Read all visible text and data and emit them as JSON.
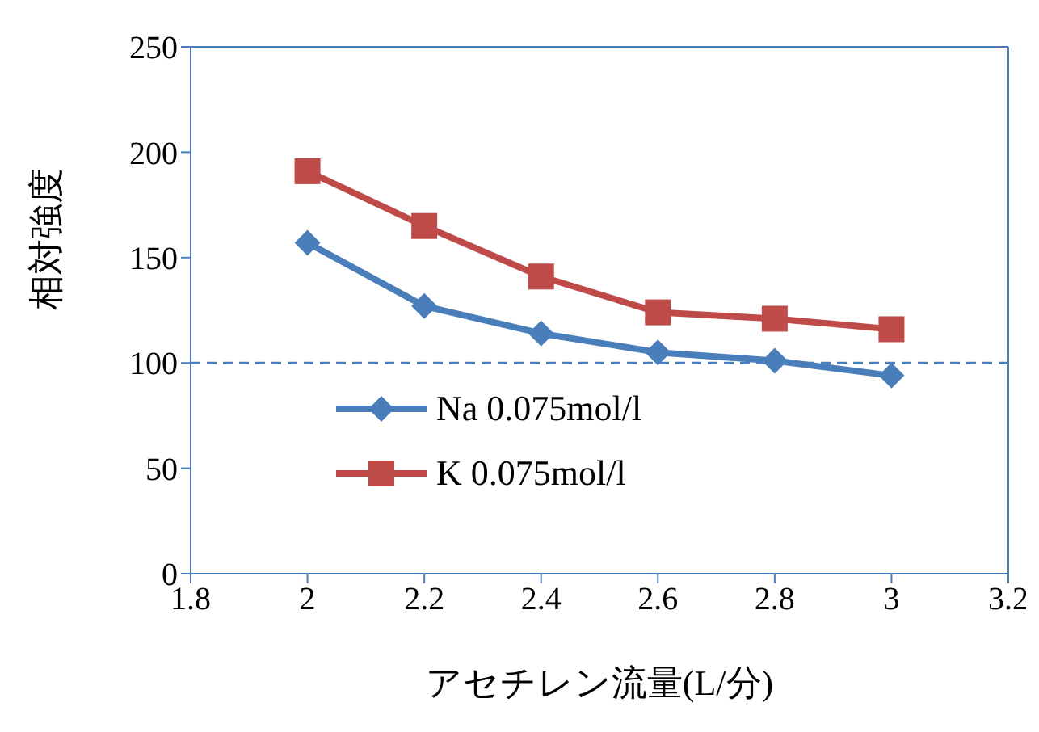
{
  "chart_data": {
    "type": "line",
    "xlabel": "アセチレン流量(L/分)",
    "ylabel": "相対強度",
    "x": [
      2,
      2.2,
      2.4,
      2.6,
      2.8,
      3
    ],
    "series": [
      {
        "name": "Na 0.075mol/l",
        "color": "#4a7ebb",
        "marker": "diamond",
        "values": [
          157,
          127,
          114,
          105,
          101,
          94
        ]
      },
      {
        "name": "K 0.075mol/l",
        "color": "#be4b48",
        "marker": "square",
        "values": [
          191,
          165,
          141,
          124,
          121,
          116
        ]
      }
    ],
    "xlim": [
      1.8,
      3.2
    ],
    "xticks": [
      1.8,
      2,
      2.2,
      2.4,
      2.6,
      2.8,
      3,
      3.2
    ],
    "ylim": [
      0,
      250
    ],
    "yticks": [
      0,
      50,
      100,
      150,
      200,
      250
    ],
    "ref_lines": [
      {
        "axis": "y",
        "value": 100,
        "color": "#4a7ebb",
        "line_style": "dashed"
      }
    ],
    "grid": false,
    "legend": "left"
  }
}
